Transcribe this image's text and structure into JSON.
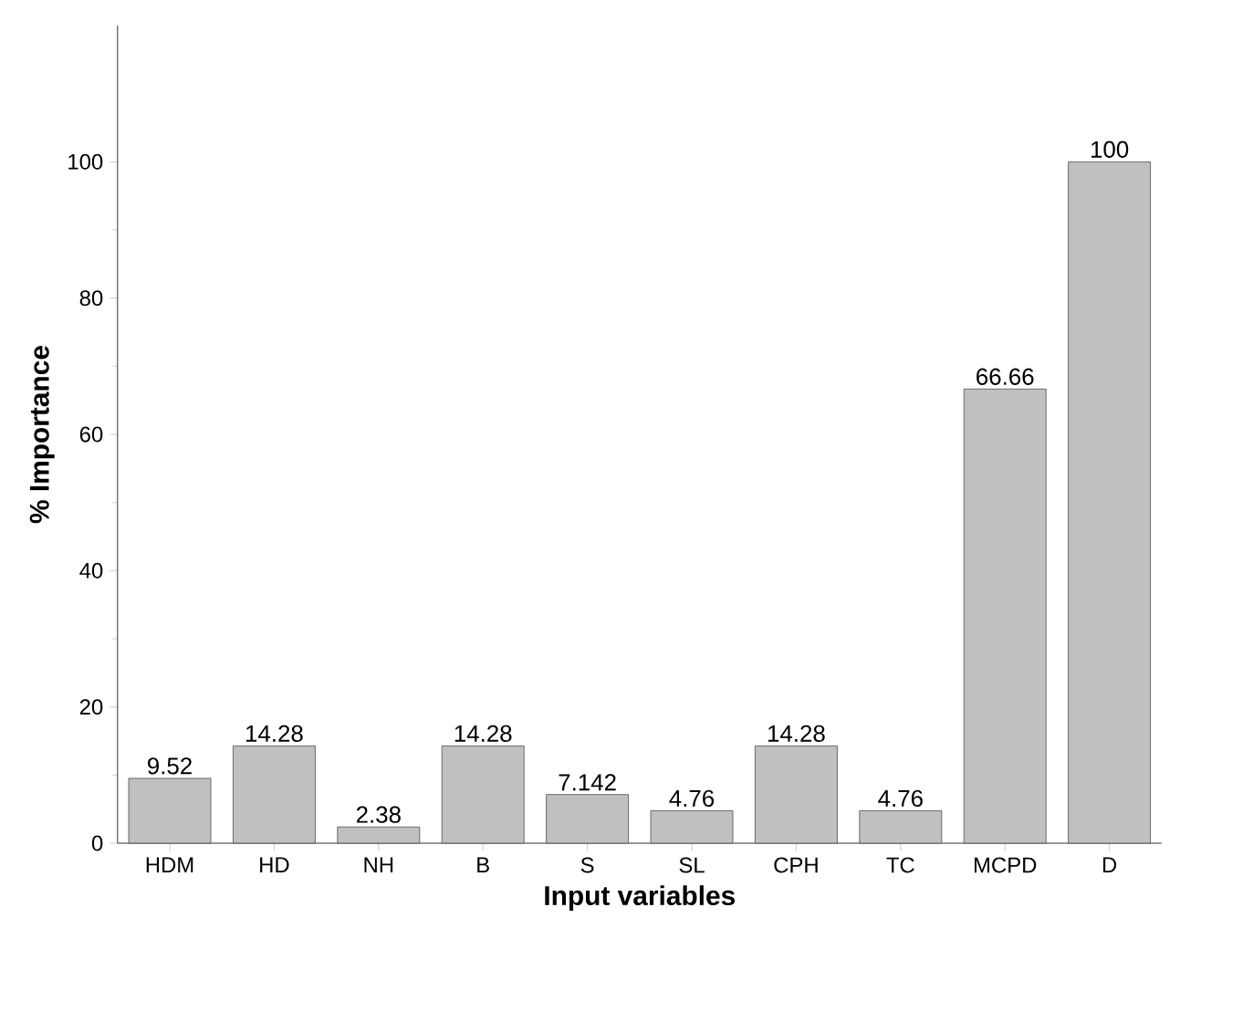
{
  "chart_data": {
    "type": "bar",
    "xlabel": "Input variables",
    "ylabel": "% Importance",
    "categories": [
      "HDM",
      "HD",
      "NH",
      "B",
      "S",
      "SL",
      "CPH",
      "TC",
      "MCPD",
      "D"
    ],
    "values": [
      9.52,
      14.28,
      2.38,
      14.28,
      7.142,
      4.76,
      14.28,
      4.76,
      66.66,
      100
    ],
    "color": "#c0c0c0",
    "ylim": [
      0,
      120
    ],
    "yticks": [
      0,
      20,
      40,
      60,
      80,
      100
    ],
    "data_labels": true
  }
}
